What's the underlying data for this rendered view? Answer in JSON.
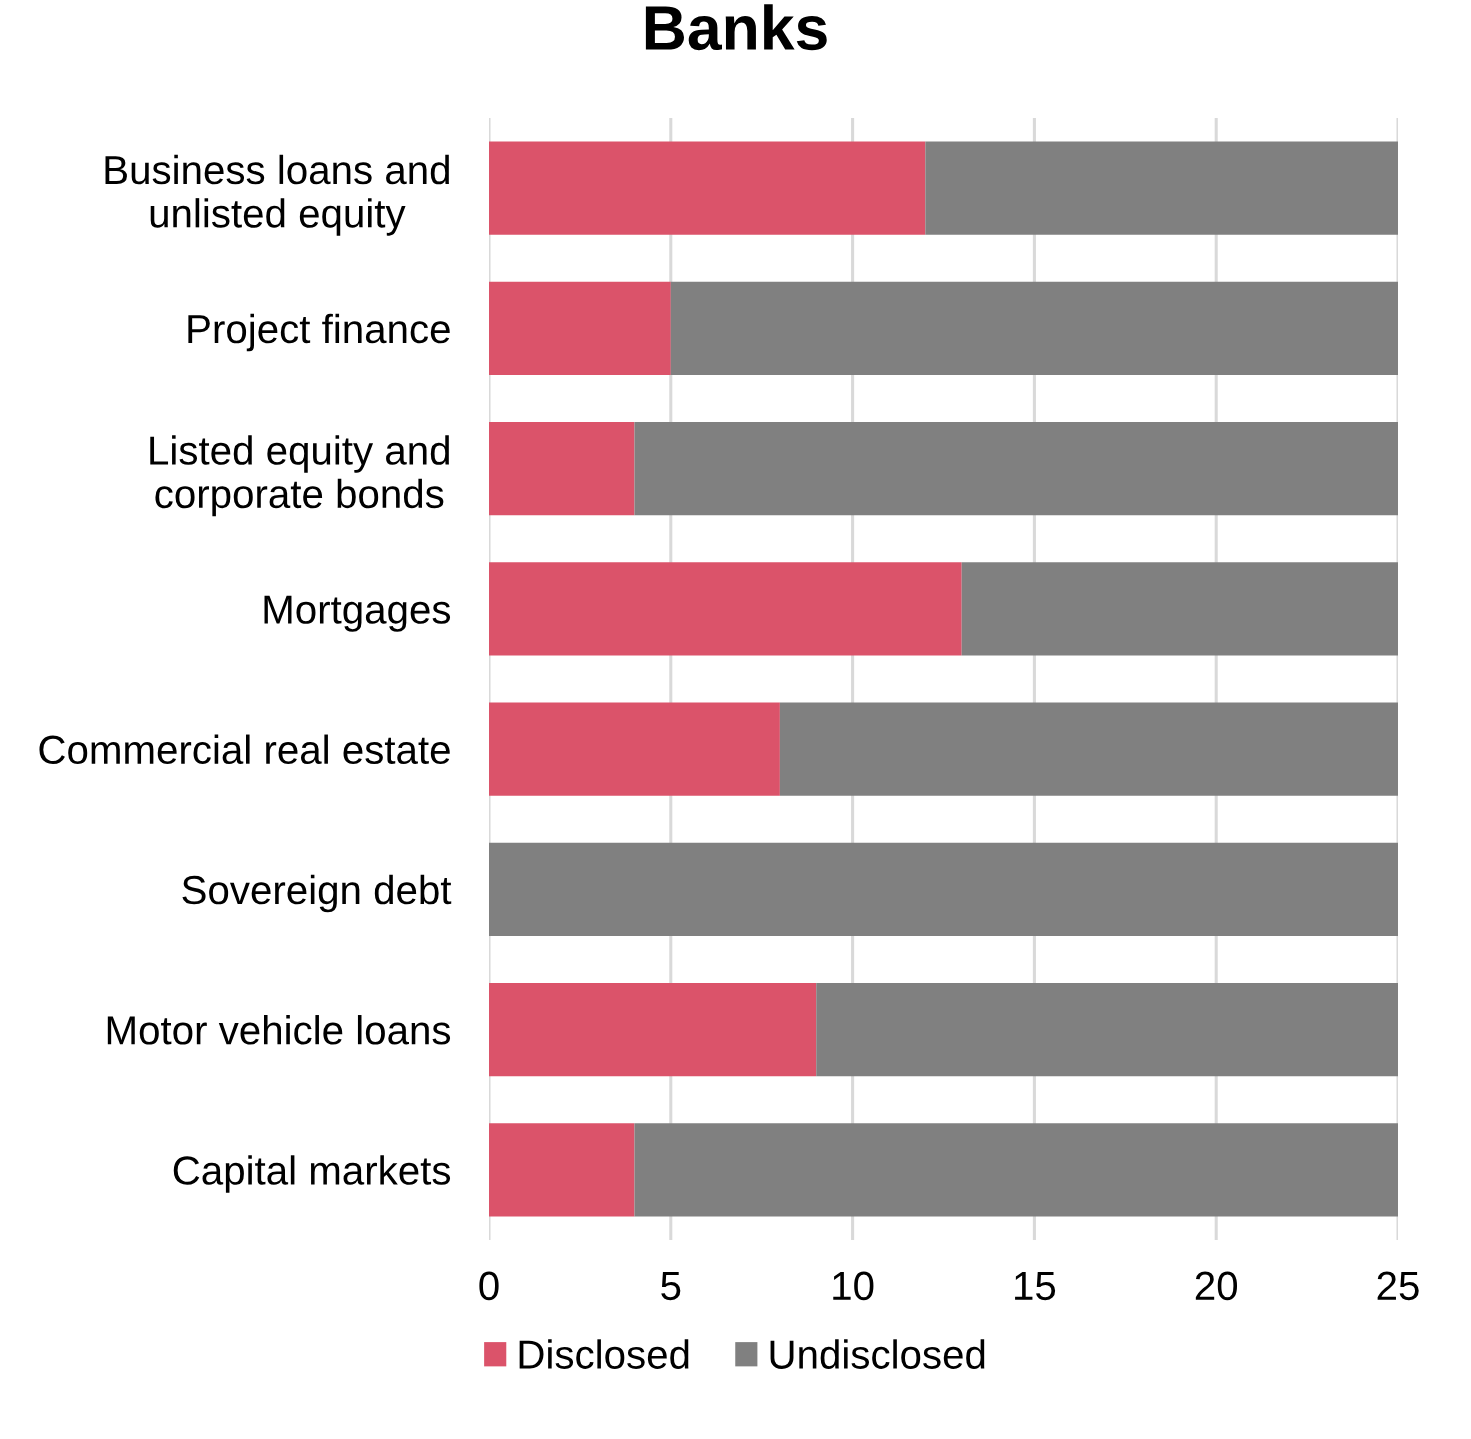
{
  "chart_data": {
    "type": "bar",
    "orientation": "horizontal",
    "stacked": true,
    "title": "Banks",
    "categories": [
      "Business loans and\nunlisted equity",
      "Project finance",
      "Listed equity and\ncorporate bonds",
      "Mortgages",
      "Commercial real estate",
      "Sovereign debt",
      "Motor vehicle loans",
      "Capital markets"
    ],
    "series": [
      {
        "name": "Disclosed",
        "color": "#db536a",
        "values": [
          12,
          5,
          4,
          13,
          8,
          0,
          9,
          4
        ]
      },
      {
        "name": "Undisclosed",
        "color": "#808080",
        "values": [
          13,
          20,
          21,
          12,
          17,
          25,
          16,
          21
        ]
      }
    ],
    "xlim": [
      0,
      25
    ],
    "xticks": [
      0,
      5,
      10,
      15,
      20,
      25
    ],
    "grid": "x",
    "legend": "bottom"
  }
}
